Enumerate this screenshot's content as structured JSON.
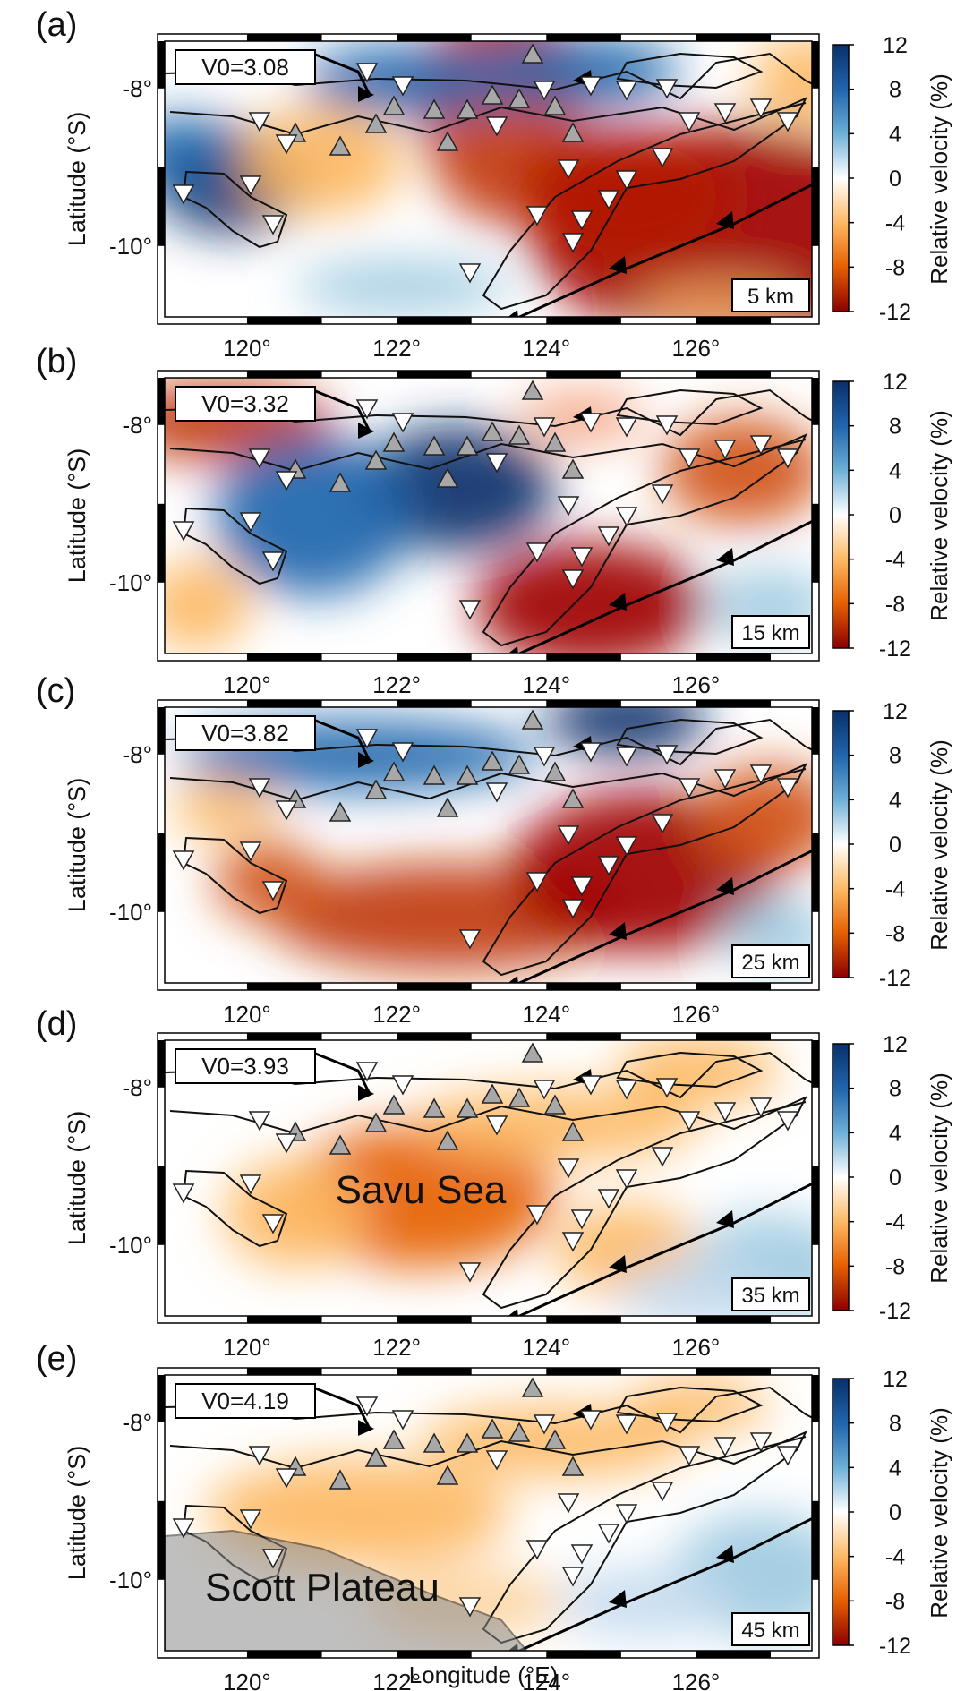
{
  "figure": {
    "xlabel": "Longitude (°E)",
    "ylabel": "Latitude (°S)",
    "colorbar_label": "Relative velocity (%)",
    "colorbar_ticks": [
      "12",
      "8",
      "4",
      "0",
      "-4",
      "-8",
      "-12"
    ],
    "lon_ticks": [
      "120°",
      "122°",
      "124°",
      "126°"
    ],
    "lat_ticks": [
      "-8°",
      "-10°"
    ],
    "colors": {
      "fast": "#08306b",
      "slow": "#8b0000",
      "neutral": "#ffffff",
      "station_up": "#a8a8a8",
      "station_down": "#ffffff",
      "plateau": "#8a8a8a"
    },
    "station_icons": [
      "gray-triangle-up-icon",
      "white-triangle-down-icon"
    ]
  },
  "panels": [
    {
      "letter": "(a)",
      "v0": "V0=3.08",
      "depth": "5 km",
      "annotation": ""
    },
    {
      "letter": "(b)",
      "v0": "V0=3.32",
      "depth": "15 km",
      "annotation": ""
    },
    {
      "letter": "(c)",
      "v0": "V0=3.82",
      "depth": "25 km",
      "annotation": ""
    },
    {
      "letter": "(d)",
      "v0": "V0=3.93",
      "depth": "35 km",
      "annotation": "Savu Sea"
    },
    {
      "letter": "(e)",
      "v0": "V0=4.19",
      "depth": "45 km",
      "annotation": "Scott Plateau"
    }
  ]
}
